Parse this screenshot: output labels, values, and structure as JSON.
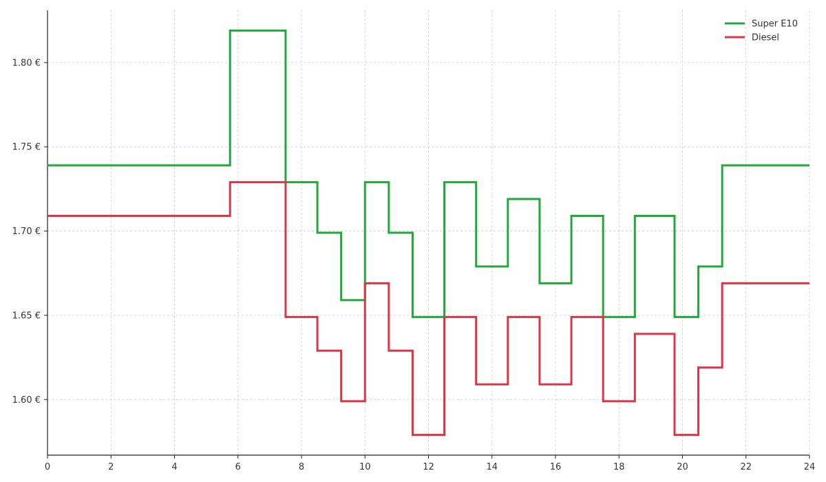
{
  "chart_data": {
    "type": "line",
    "step": "post",
    "title": "",
    "xlabel": "",
    "ylabel": "",
    "xlim": [
      0,
      24
    ],
    "ylim": [
      1.567,
      1.831
    ],
    "x_ticks": [
      0,
      2,
      4,
      6,
      8,
      10,
      12,
      14,
      16,
      18,
      20,
      22,
      24
    ],
    "x_tick_labels": [
      "0",
      "2",
      "4",
      "6",
      "8",
      "10",
      "12",
      "14",
      "16",
      "18",
      "20",
      "22",
      "24"
    ],
    "y_ticks": [
      1.6,
      1.65,
      1.7,
      1.75,
      1.8
    ],
    "y_tick_labels": [
      "1.60 €",
      "1.65 €",
      "1.70 €",
      "1.75 €",
      "1.80 €"
    ],
    "grid": true,
    "legend_position": "top-right",
    "series": [
      {
        "name": "Super E10",
        "color": "#22a83a",
        "x": [
          0,
          5.75,
          7.5,
          8.5,
          9.25,
          10,
          10.75,
          11.5,
          12.5,
          13.5,
          14.5,
          15.5,
          16.5,
          17.5,
          18.5,
          19.75,
          20.5,
          21.25,
          24
        ],
        "y": [
          1.739,
          1.819,
          1.729,
          1.699,
          1.659,
          1.729,
          1.699,
          1.649,
          1.729,
          1.679,
          1.719,
          1.669,
          1.709,
          1.649,
          1.709,
          1.649,
          1.679,
          1.739,
          1.739
        ]
      },
      {
        "name": "Diesel",
        "color": "#dc3545",
        "x": [
          0,
          5.75,
          7.5,
          8.5,
          9.25,
          10,
          10.75,
          11.5,
          12.5,
          13.5,
          14.5,
          15.5,
          16.5,
          17.5,
          18.5,
          19.75,
          20.5,
          21.25,
          24
        ],
        "y": [
          1.709,
          1.729,
          1.649,
          1.629,
          1.599,
          1.669,
          1.629,
          1.579,
          1.649,
          1.609,
          1.649,
          1.609,
          1.649,
          1.599,
          1.639,
          1.579,
          1.619,
          1.669,
          1.669
        ]
      }
    ]
  }
}
